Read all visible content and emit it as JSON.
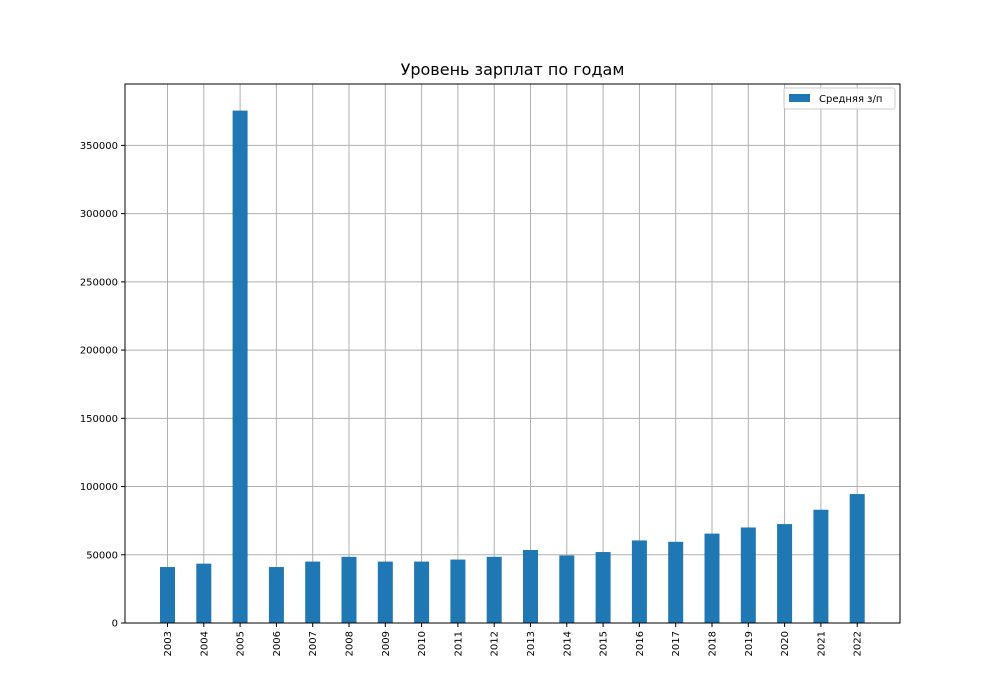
{
  "chart_data": {
    "type": "bar",
    "title": "Уровень зарплат по годам",
    "xlabel": "",
    "ylabel": "",
    "categories": [
      "2003",
      "2004",
      "2005",
      "2006",
      "2007",
      "2008",
      "2009",
      "2010",
      "2011",
      "2012",
      "2013",
      "2014",
      "2015",
      "2016",
      "2017",
      "2018",
      "2019",
      "2020",
      "2021",
      "2022"
    ],
    "series": [
      {
        "name": "Средняя з/п",
        "color": "#1f77b4",
        "values": [
          41000,
          43500,
          375500,
          41000,
          45000,
          48500,
          45000,
          45000,
          46500,
          48500,
          53500,
          49500,
          52000,
          60500,
          59500,
          65500,
          70000,
          72500,
          83000,
          94500
        ]
      }
    ],
    "ylim": [
      0,
      395000
    ],
    "yticks": [
      0,
      50000,
      100000,
      150000,
      200000,
      250000,
      300000,
      350000
    ],
    "ytick_labels": [
      "0",
      "50000",
      "100000",
      "150000",
      "200000",
      "250000",
      "300000",
      "350000"
    ],
    "grid": true,
    "legend_position": "top-right",
    "xtick_rotation": "vertical"
  }
}
